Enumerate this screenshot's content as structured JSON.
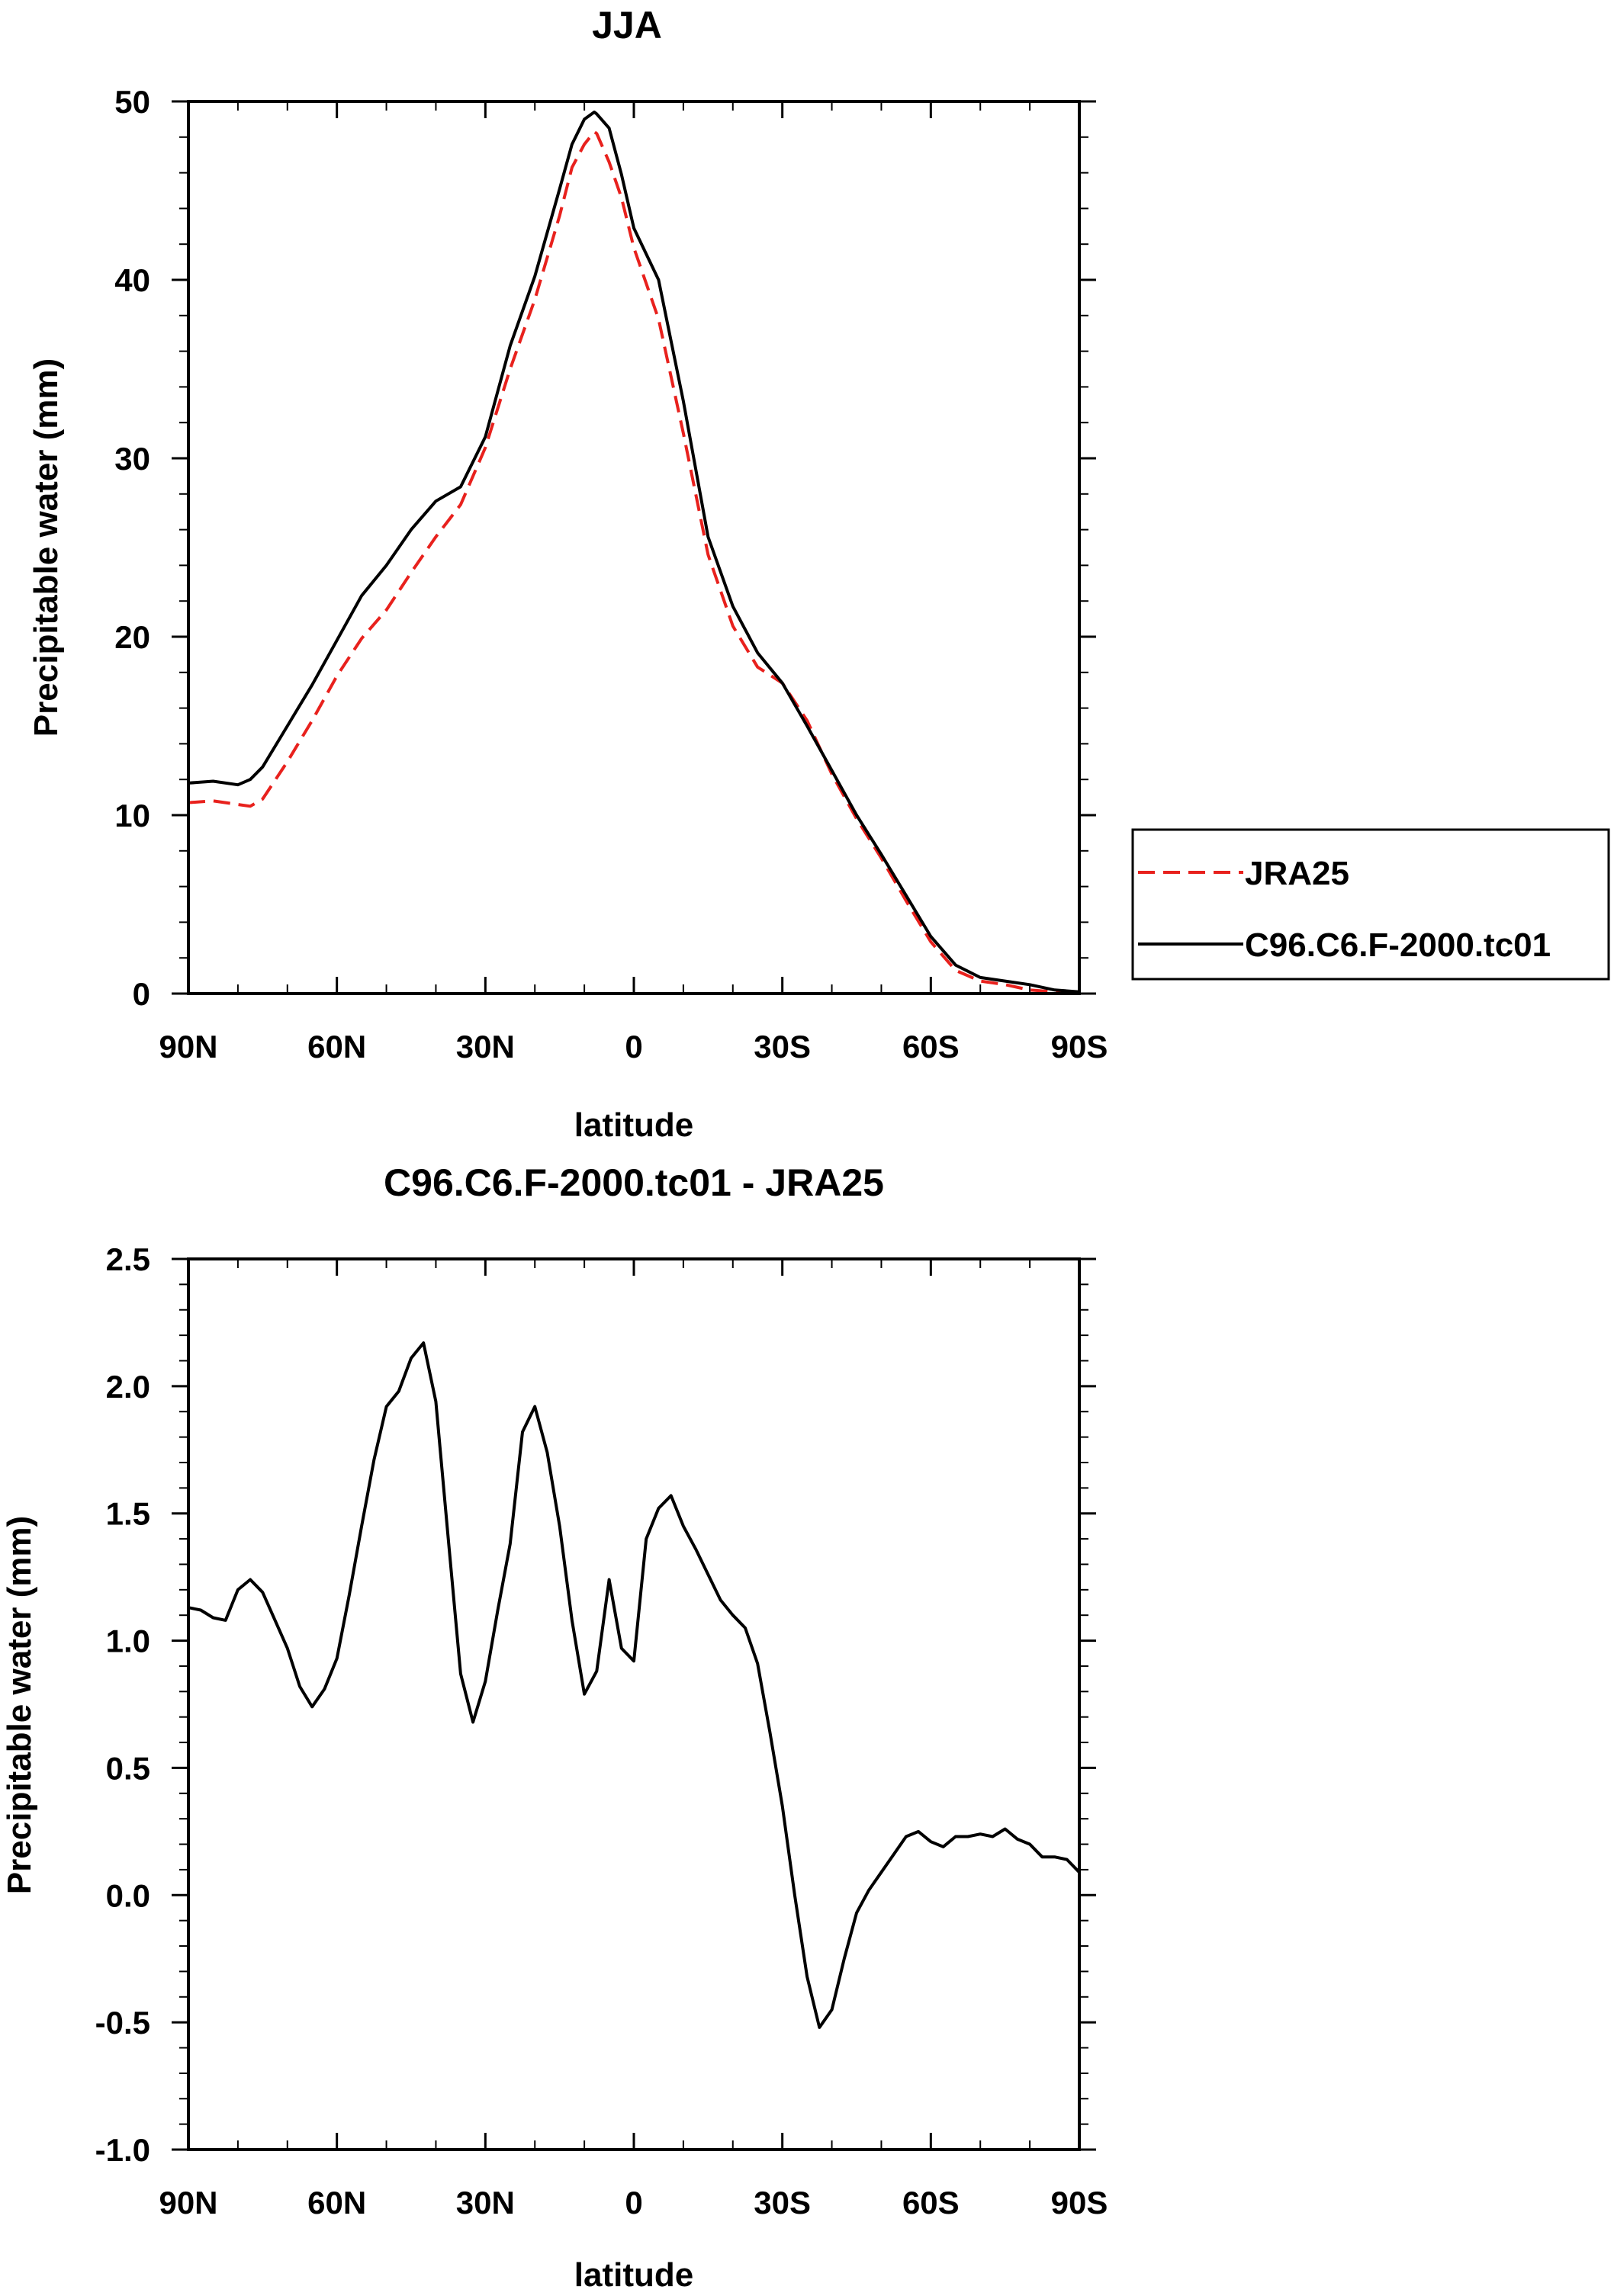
{
  "chart_data": [
    {
      "type": "line",
      "title": "JJA",
      "xlabel": "latitude",
      "ylabel": "Precipitable water (mm)",
      "x_tick_labels": [
        "90N",
        "60N",
        "30N",
        "0",
        "30S",
        "60S",
        "90S"
      ],
      "x_ticks": [
        90,
        60,
        30,
        0,
        -30,
        -60,
        -90
      ],
      "xlim": [
        90,
        -90
      ],
      "ylim": [
        0,
        50
      ],
      "y_ticks": [
        0,
        10,
        20,
        30,
        40,
        50
      ],
      "y_tick_labels": [
        "0",
        "10",
        "20",
        "30",
        "40",
        "50"
      ],
      "legend_position": "right",
      "series": [
        {
          "name": "JRA25",
          "color": "#e8211d",
          "style": "dashed",
          "x": [
            90,
            85,
            80,
            77.5,
            75,
            70,
            65,
            60,
            55,
            50,
            45,
            40,
            35,
            30,
            25,
            20,
            15,
            12.5,
            10,
            8,
            7.5,
            5,
            2.5,
            0,
            -5,
            -10,
            -15,
            -20,
            -25,
            -30,
            -35,
            -40,
            -45,
            -50,
            -55,
            -60,
            -65,
            -70,
            -75,
            -80,
            -85,
            -90
          ],
          "y": [
            10.7,
            10.8,
            10.6,
            10.5,
            10.9,
            13.0,
            15.3,
            17.8,
            19.9,
            21.5,
            23.6,
            25.6,
            27.4,
            30.6,
            35.0,
            38.9,
            43.6,
            46.3,
            47.6,
            48.3,
            48.2,
            46.6,
            44.6,
            41.8,
            37.8,
            31.4,
            24.6,
            20.6,
            18.3,
            17.4,
            15.3,
            12.3,
            9.8,
            7.6,
            5.2,
            2.9,
            1.3,
            0.7,
            0.5,
            0.2,
            0.1,
            0.0
          ]
        },
        {
          "name": "C96.C6.F-2000.tc01",
          "color": "#000000",
          "style": "solid",
          "x": [
            90,
            85,
            80,
            77.5,
            75,
            70,
            65,
            60,
            55,
            50,
            45,
            40,
            35,
            30,
            25,
            20,
            15,
            12.5,
            10,
            8,
            7.5,
            5,
            2.5,
            0,
            -5,
            -10,
            -15,
            -20,
            -25,
            -30,
            -35,
            -40,
            -45,
            -50,
            -55,
            -60,
            -65,
            -70,
            -75,
            -80,
            -85,
            -90
          ],
          "y": [
            11.8,
            11.9,
            11.7,
            12.0,
            12.7,
            15.0,
            17.3,
            19.8,
            22.3,
            24.0,
            26.0,
            27.6,
            28.4,
            31.2,
            36.3,
            40.2,
            45.1,
            47.6,
            49.0,
            49.4,
            49.3,
            48.5,
            45.9,
            42.9,
            40.0,
            33.2,
            25.6,
            21.7,
            19.1,
            17.4,
            15.0,
            12.5,
            10.0,
            7.8,
            5.5,
            3.2,
            1.6,
            0.9,
            0.7,
            0.5,
            0.2,
            0.1
          ]
        }
      ]
    },
    {
      "type": "line",
      "title": "C96.C6.F-2000.tc01 - JRA25",
      "xlabel": "latitude",
      "ylabel": "Precipitable water (mm)",
      "x_tick_labels": [
        "90N",
        "60N",
        "30N",
        "0",
        "30S",
        "60S",
        "90S"
      ],
      "x_ticks": [
        90,
        60,
        30,
        0,
        -30,
        -60,
        -90
      ],
      "xlim": [
        90,
        -90
      ],
      "ylim": [
        -1.0,
        2.5
      ],
      "y_ticks": [
        -1.0,
        -0.5,
        0.0,
        0.5,
        1.0,
        1.5,
        2.0,
        2.5
      ],
      "y_tick_labels": [
        "-1.0",
        "-0.5",
        "0.0",
        "0.5",
        "1.0",
        "1.5",
        "2.0",
        "2.5"
      ],
      "series": [
        {
          "color": "#000000",
          "style": "solid",
          "x": [
            90,
            87.5,
            85,
            82.5,
            80,
            77.5,
            75,
            72.5,
            70,
            67.5,
            65,
            62.5,
            60,
            57.5,
            55,
            52.5,
            50,
            47.5,
            45,
            42.5,
            40,
            37.5,
            35,
            32.5,
            30,
            27.5,
            25,
            22.5,
            20,
            17.5,
            15,
            12.5,
            10,
            7.5,
            5,
            2.5,
            0,
            -2.5,
            -5,
            -7.5,
            -10,
            -12.5,
            -15,
            -17.5,
            -20,
            -22.5,
            -25,
            -27.5,
            -30,
            -32.5,
            -35,
            -37.5,
            -40,
            -42.5,
            -45,
            -47.5,
            -50,
            -52.5,
            -55,
            -57.5,
            -60,
            -62.5,
            -65,
            -67.5,
            -70,
            -72.5,
            -75,
            -77.5,
            -80,
            -82.5,
            -85,
            -87.5,
            -90
          ],
          "y": [
            1.13,
            1.12,
            1.09,
            1.08,
            1.2,
            1.24,
            1.19,
            1.08,
            0.97,
            0.82,
            0.74,
            0.81,
            0.93,
            1.18,
            1.45,
            1.71,
            1.92,
            1.98,
            2.11,
            2.17,
            1.94,
            1.4,
            0.87,
            0.68,
            0.84,
            1.12,
            1.38,
            1.82,
            1.92,
            1.74,
            1.45,
            1.08,
            0.79,
            0.88,
            1.24,
            0.97,
            0.92,
            1.4,
            1.52,
            1.57,
            1.45,
            1.36,
            1.26,
            1.16,
            1.1,
            1.05,
            0.91,
            0.64,
            0.35,
            -0.0,
            -0.32,
            -0.52,
            -0.45,
            -0.25,
            -0.07,
            0.02,
            0.09,
            0.16,
            0.23,
            0.25,
            0.21,
            0.19,
            0.23,
            0.23,
            0.24,
            0.23,
            0.26,
            0.22,
            0.2,
            0.15,
            0.15,
            0.14,
            0.09
          ]
        }
      ]
    }
  ]
}
